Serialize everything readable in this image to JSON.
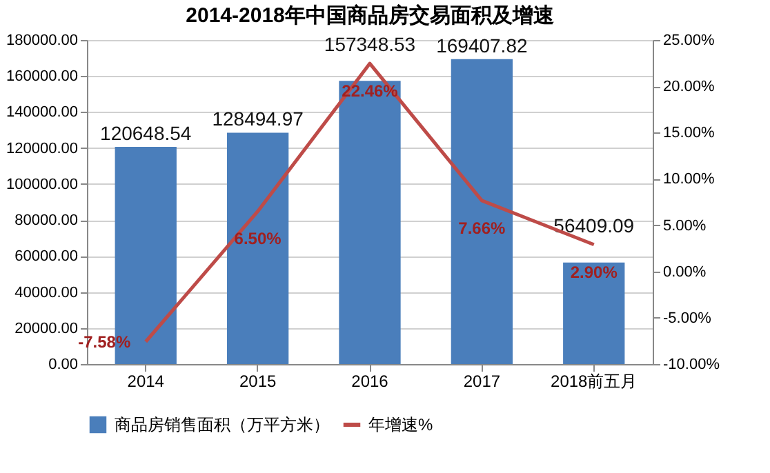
{
  "chart_data": {
    "type": "bar",
    "title": "2014-2018年中国商品房交易面积及增速",
    "categories": [
      "2014",
      "2015",
      "2016",
      "2017",
      "2018前五月"
    ],
    "series": [
      {
        "name": "商品房销售面积（万平方米）",
        "color": "#4a7ebb",
        "values": [
          120648.54,
          128494.97,
          157348.53,
          169407.82,
          56409.09
        ],
        "value_labels": [
          "120648.54",
          "128494.97",
          "157348.53",
          "169407.82",
          "56409.09"
        ]
      },
      {
        "name": "年增速%",
        "type": "line",
        "axis": "y2",
        "color": "#be4b48",
        "values": [
          -7.58,
          6.5,
          22.46,
          7.66,
          2.9
        ],
        "value_labels": [
          "-7.58%",
          "6.50%",
          "22.46%",
          "7.66%",
          "2.90%"
        ]
      }
    ],
    "ylim": [
      0,
      180000
    ],
    "yticks": [
      {
        "value": 0,
        "label": "0.00"
      },
      {
        "value": 20000,
        "label": "20000.00"
      },
      {
        "value": 40000,
        "label": "40000.00"
      },
      {
        "value": 60000,
        "label": "60000.00"
      },
      {
        "value": 80000,
        "label": "80000.00"
      },
      {
        "value": 100000,
        "label": "100000.00"
      },
      {
        "value": 120000,
        "label": "120000.00"
      },
      {
        "value": 140000,
        "label": "140000.00"
      },
      {
        "value": 160000,
        "label": "160000.00"
      },
      {
        "value": 180000,
        "label": "180000.00"
      }
    ],
    "y2lim": [
      -10,
      25
    ],
    "y2ticks": [
      {
        "value": -10,
        "label": "-10.00%"
      },
      {
        "value": -5,
        "label": "-5.00%"
      },
      {
        "value": 0,
        "label": "0.00%"
      },
      {
        "value": 5,
        "label": "5.00%"
      },
      {
        "value": 10,
        "label": "10.00%"
      },
      {
        "value": 15,
        "label": "15.00%"
      },
      {
        "value": 20,
        "label": "20.00%"
      },
      {
        "value": 25,
        "label": "25.00%"
      }
    ],
    "grid": "y",
    "legend": "bottom"
  }
}
